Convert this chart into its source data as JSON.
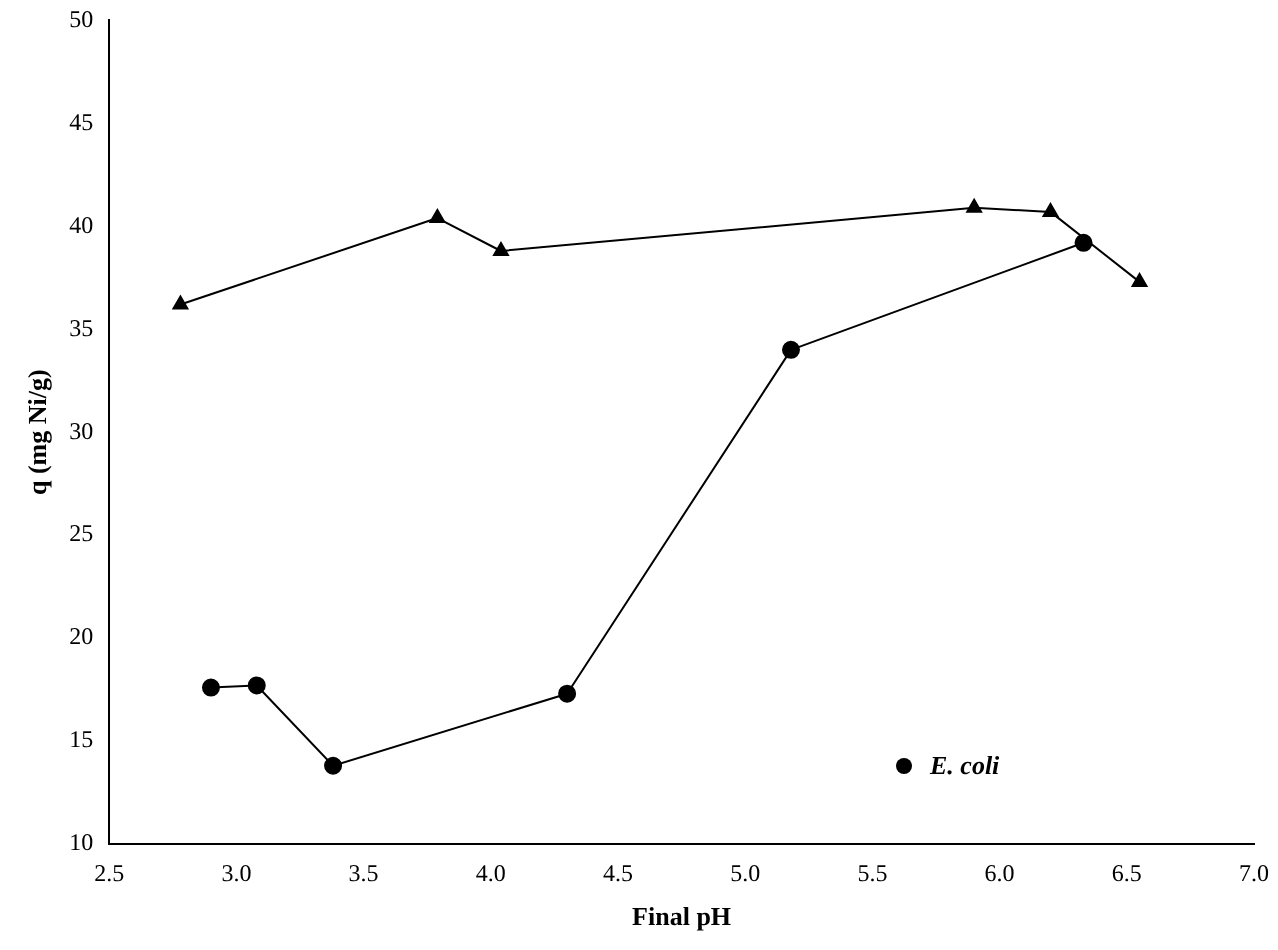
{
  "chart_data": {
    "type": "line",
    "xlabel": "Final pH",
    "ylabel": "q (mg Ni/g)",
    "xlim": [
      2.5,
      7.0
    ],
    "xticks": [
      2.5,
      {
        "value": 3,
        "label": "3.0"
      },
      3.5,
      {
        "value": 4,
        "label": "4.0"
      },
      4.5,
      {
        "value": 5,
        "label": "5.0"
      },
      5.5,
      {
        "value": 6,
        "label": "6.0"
      },
      6.5,
      {
        "value": 7,
        "label": "7.0"
      }
    ],
    "ylim": [
      10,
      50
    ],
    "yticks": [
      10,
      15,
      20,
      25,
      30,
      35,
      40,
      45,
      50
    ],
    "grid": false,
    "legend": "bottom right",
    "line_style": "solid",
    "series": [
      {
        "name": "E. coli",
        "color": "#000000",
        "marker": "circle",
        "x": [
          2.9,
          3.08,
          3.38,
          4.3,
          5.18,
          6.33
        ],
        "values": [
          17.6,
          17.7,
          13.8,
          17.3,
          34.0,
          39.2
        ]
      },
      {
        "color": "#000000",
        "marker": "triangle",
        "x": [
          2.78,
          3.79,
          4.04,
          5.9,
          6.2,
          6.55
        ],
        "values": [
          36.2,
          40.4,
          38.8,
          40.9,
          40.7,
          37.3
        ]
      }
    ]
  }
}
